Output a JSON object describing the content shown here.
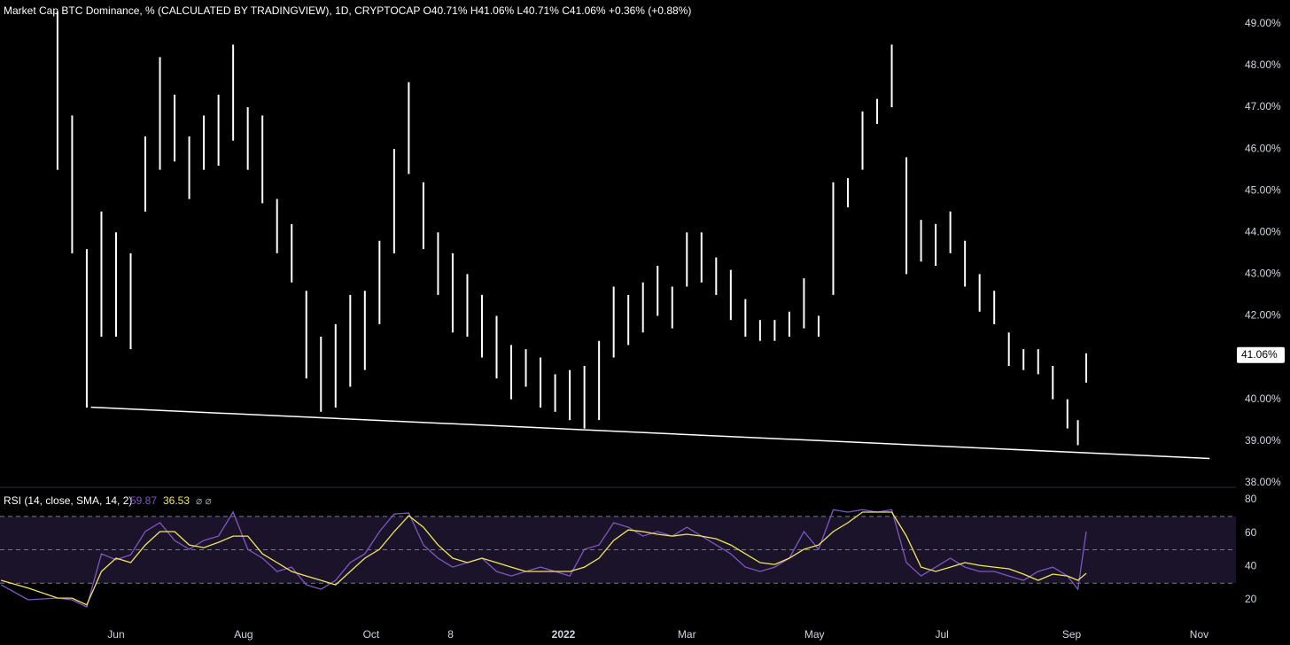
{
  "chart_data": [
    {
      "type": "hilo",
      "title": "Market Cap BTC Dominance, % (CALCULATED BY TRADINGVIEW), 1D, CRYPTOCAP  O40.71%  H41.06%  L40.71%  C41.06%  +0.36% (+0.88%)",
      "color": "#ffffff",
      "x": [
        -28,
        -21,
        -14,
        -7,
        0,
        7,
        14,
        21,
        28,
        35,
        42,
        49,
        56,
        63,
        70,
        77,
        84,
        91,
        98,
        105,
        112,
        119,
        126,
        133,
        140,
        147,
        154,
        161,
        168,
        175,
        182,
        189,
        196,
        203,
        210,
        217,
        224,
        231,
        238,
        245,
        252,
        259,
        266,
        273,
        280,
        287,
        294,
        301,
        308,
        315,
        322,
        329,
        336,
        343,
        350,
        357,
        364,
        371,
        378,
        385,
        392,
        399,
        406,
        413,
        420,
        427,
        434,
        441,
        448,
        455,
        460,
        464
      ],
      "high": [
        49.3,
        46.8,
        43.6,
        44.5,
        44.0,
        43.5,
        46.3,
        48.2,
        47.3,
        46.3,
        46.8,
        47.3,
        48.5,
        47.0,
        46.8,
        44.8,
        44.2,
        42.6,
        41.5,
        41.8,
        42.5,
        42.6,
        43.8,
        46.0,
        47.6,
        45.2,
        44.0,
        43.5,
        43.0,
        42.5,
        42.0,
        41.3,
        41.2,
        41.0,
        40.6,
        40.7,
        40.8,
        41.4,
        42.7,
        42.5,
        42.8,
        43.2,
        42.7,
        44.0,
        44.0,
        43.4,
        43.1,
        42.4,
        41.9,
        41.9,
        42.1,
        42.9,
        42.0,
        45.2,
        45.3,
        46.9,
        47.2,
        48.5,
        45.8,
        44.3,
        44.2,
        44.5,
        43.8,
        43.0,
        42.6,
        41.6,
        41.2,
        41.2,
        40.8,
        40.0,
        39.5,
        41.1
      ],
      "low": [
        45.5,
        43.5,
        39.8,
        41.5,
        41.5,
        41.2,
        44.5,
        45.5,
        45.7,
        44.8,
        45.5,
        45.6,
        46.2,
        45.5,
        44.7,
        43.5,
        42.8,
        40.5,
        39.7,
        39.8,
        40.3,
        40.7,
        41.8,
        43.5,
        45.4,
        43.6,
        42.5,
        41.6,
        41.5,
        41.0,
        40.5,
        40.0,
        40.3,
        39.8,
        39.7,
        39.5,
        39.3,
        39.5,
        41.0,
        41.3,
        41.6,
        42.0,
        41.7,
        42.7,
        42.8,
        42.5,
        41.9,
        41.5,
        41.4,
        41.4,
        41.5,
        41.7,
        41.5,
        42.5,
        44.6,
        45.5,
        46.6,
        47.0,
        43.0,
        43.3,
        43.2,
        43.5,
        42.7,
        42.1,
        41.8,
        40.8,
        40.7,
        40.6,
        40.0,
        39.3,
        38.9,
        40.4
      ],
      "xlim": [
        -55.5,
        535.6
      ],
      "ylim": [
        37.89,
        49.57
      ],
      "yticks": [
        {
          "value": 38,
          "label": "38.00%"
        },
        {
          "value": 39,
          "label": "39.00%"
        },
        {
          "value": 40,
          "label": "40.00%"
        },
        {
          "value": 41,
          "label": "41.00%"
        },
        {
          "value": 42,
          "label": "42.00%"
        },
        {
          "value": 43,
          "label": "43.00%"
        },
        {
          "value": 44,
          "label": "44.00%"
        },
        {
          "value": 45,
          "label": "45.00%"
        },
        {
          "value": 46,
          "label": "46.00%"
        },
        {
          "value": 47,
          "label": "47.00%"
        },
        {
          "value": 48,
          "label": "48.00%"
        },
        {
          "value": 49,
          "label": "49.00%"
        }
      ],
      "xticks": [
        {
          "value": 0,
          "label": "Jun"
        },
        {
          "value": 61,
          "label": "Aug"
        },
        {
          "value": 122,
          "label": "Oct"
        },
        {
          "value": 160,
          "label": "8"
        },
        {
          "value": 214,
          "label": "2022"
        },
        {
          "value": 273,
          "label": "Mar"
        },
        {
          "value": 334,
          "label": "May"
        },
        {
          "value": 395,
          "label": "Jul"
        },
        {
          "value": 457,
          "label": "Sep"
        },
        {
          "value": 518,
          "label": "Nov"
        }
      ],
      "trendline": {
        "x": [
          -12,
          523
        ],
        "values": [
          39.81,
          38.58
        ],
        "color": "#ffffff"
      },
      "last_value": {
        "value": 41.06,
        "label": "41.06%"
      }
    },
    {
      "type": "line",
      "title": "RSI (14, close, SMA, 14, 2)",
      "legend_values": [
        59.87,
        36.53
      ],
      "legend_symbols": "⌀ ⌀",
      "x": [
        -55,
        -42,
        -28,
        -21,
        -14,
        -7,
        0,
        7,
        14,
        21,
        28,
        35,
        42,
        49,
        56,
        63,
        70,
        77,
        84,
        91,
        98,
        105,
        112,
        119,
        126,
        133,
        140,
        147,
        154,
        161,
        168,
        175,
        182,
        189,
        196,
        203,
        210,
        217,
        224,
        231,
        238,
        245,
        252,
        259,
        266,
        273,
        280,
        287,
        294,
        301,
        308,
        315,
        322,
        329,
        336,
        343,
        350,
        357,
        364,
        371,
        378,
        385,
        392,
        399,
        406,
        413,
        420,
        427,
        434,
        441,
        448,
        455,
        460,
        464
      ],
      "series": [
        {
          "color": "#7e57c2",
          "values": [
            29,
            20,
            21.1,
            20,
            15.7,
            47.6,
            44,
            47,
            61,
            66.2,
            55.6,
            50.3,
            55.6,
            58.2,
            72.6,
            50.3,
            45.0,
            37.0,
            39.6,
            29.0,
            26.4,
            31.7,
            42.3,
            47.6,
            60.9,
            71.5,
            72,
            52.9,
            45.0,
            39.6,
            42.3,
            45.0,
            37.0,
            34.3,
            37.0,
            39.6,
            37.0,
            34.3,
            50.3,
            52.9,
            66.2,
            63.5,
            58.2,
            60.9,
            58.2,
            63.5,
            58.2,
            52.9,
            47.6,
            39.6,
            37.0,
            39.6,
            45.0,
            60.9,
            50.3,
            74,
            72.6,
            74,
            72.6,
            74,
            42.3,
            34.3,
            39.6,
            45.0,
            39.6,
            37.0,
            37.0,
            34.3,
            31.7,
            37.0,
            39.6,
            34.3,
            26.4,
            60.9
          ]
        },
        {
          "color": "#f2e65a",
          "values": [
            31.7,
            27,
            21.1,
            21,
            17,
            37.0,
            45.0,
            42.3,
            52.9,
            60.9,
            60.9,
            52.9,
            51.3,
            54.5,
            58.2,
            58.2,
            47.6,
            42.3,
            37.0,
            34.3,
            31.7,
            29.0,
            37.0,
            45.0,
            50.3,
            60.9,
            70.4,
            63.5,
            52.9,
            45.0,
            42.3,
            45.0,
            42.3,
            39.6,
            37.0,
            37.0,
            37.0,
            37.0,
            39.6,
            45.0,
            55.6,
            61.9,
            60.9,
            59.3,
            58.2,
            59.3,
            58.2,
            56.6,
            52.9,
            47.6,
            42.3,
            41.2,
            45.0,
            50.3,
            52.9,
            60.9,
            66.2,
            72.6,
            72.6,
            72.6,
            58.2,
            39.6,
            37.0,
            39.6,
            42.3,
            40.7,
            39.6,
            38.6,
            35.4,
            31.7,
            35.4,
            34.3,
            31.7,
            35.9
          ]
        }
      ],
      "xlim": [
        -55.5,
        535.6
      ],
      "ylim": [
        7.8,
        86.4
      ],
      "yticks": [
        20,
        40,
        60,
        80
      ],
      "bands": [
        30,
        50,
        70
      ],
      "band_color": "#1a1329"
    }
  ]
}
